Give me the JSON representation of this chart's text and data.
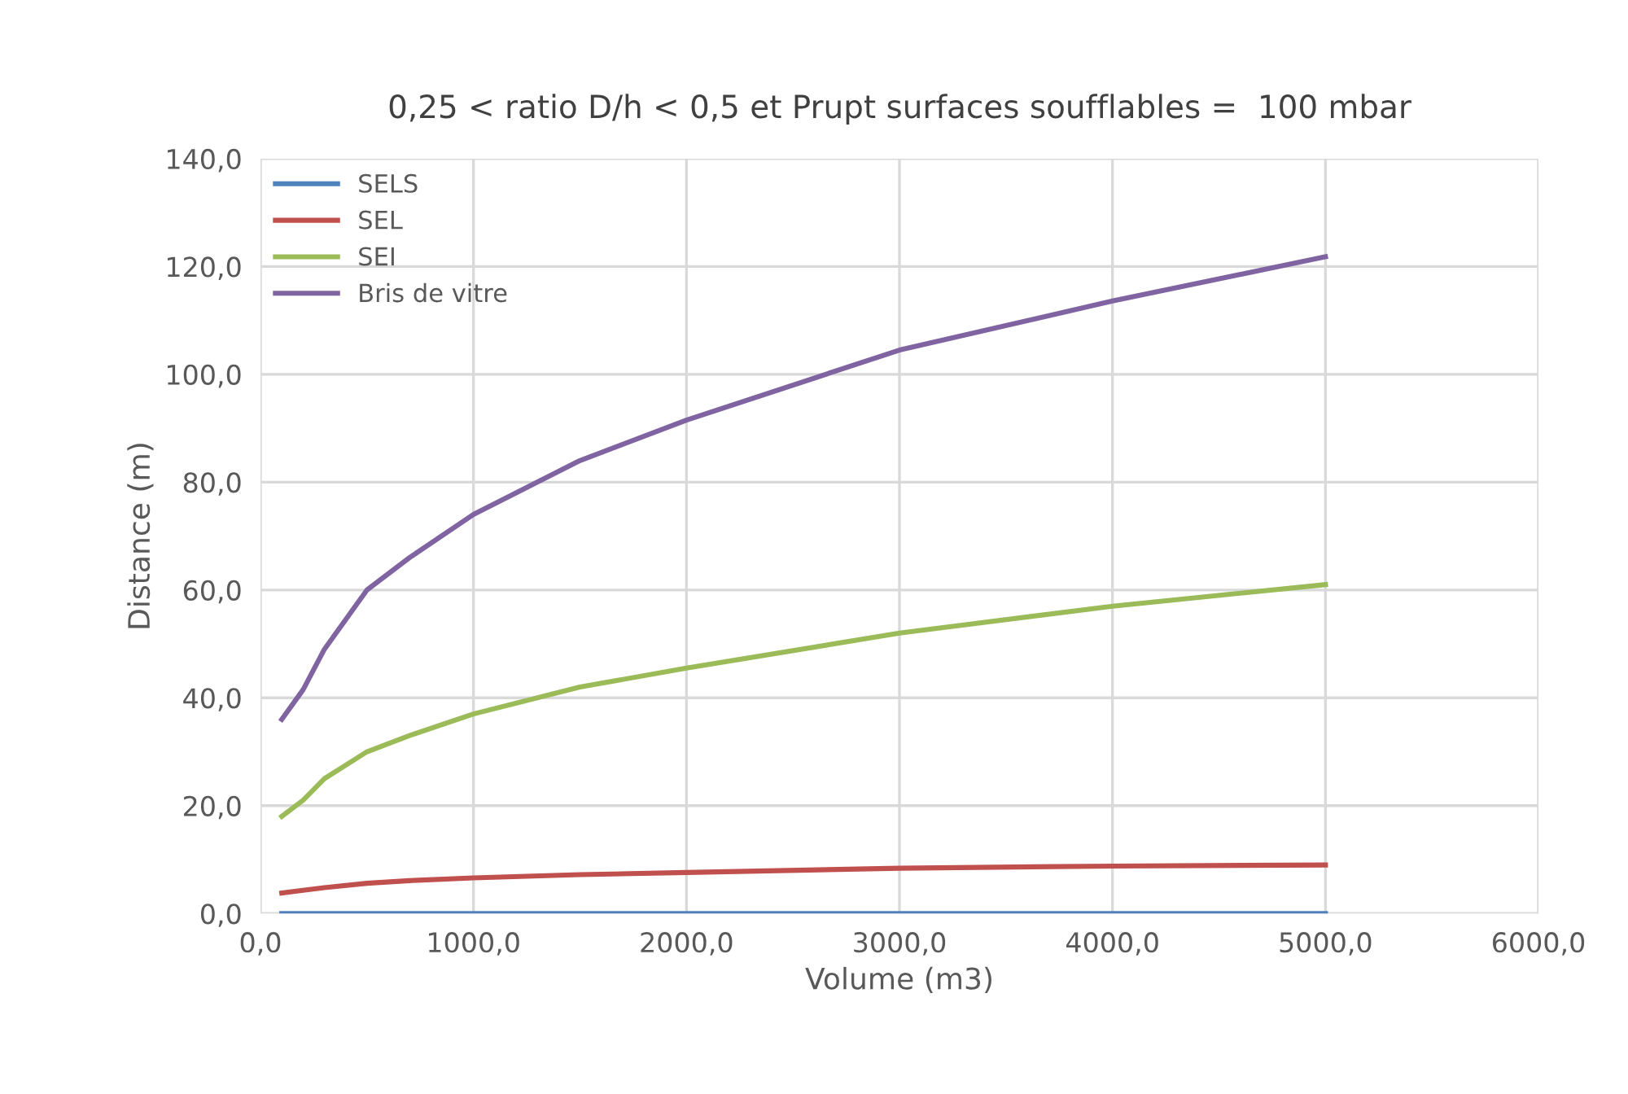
{
  "chart_data": {
    "type": "line",
    "title": "0,25 < ratio D/h < 0,5 et Prupt surfaces soufflables =  100 mbar",
    "xlabel": "Volume (m3)",
    "ylabel": "Distance (m)",
    "x": [
      100,
      200,
      300,
      500,
      700,
      1000,
      1500,
      2000,
      3000,
      4000,
      5000
    ],
    "series": [
      {
        "name": "SELS",
        "color": "#4f81bd",
        "values": [
          0,
          0,
          0,
          0,
          0,
          0,
          0,
          0,
          0,
          0,
          0
        ]
      },
      {
        "name": "SEL",
        "color": "#c0504d",
        "values": [
          3.8,
          4.3,
          4.8,
          5.6,
          6.1,
          6.6,
          7.2,
          7.6,
          8.4,
          8.8,
          9.0
        ]
      },
      {
        "name": "SEI",
        "color": "#9bbb59",
        "values": [
          18,
          21,
          25,
          30,
          33,
          37,
          42,
          45.5,
          52,
          57,
          61
        ]
      },
      {
        "name": "Bris de vitre",
        "color": "#8064a2",
        "values": [
          36,
          41.5,
          49,
          60,
          66,
          74,
          84,
          91.5,
          104.5,
          113.6,
          121.8
        ]
      }
    ],
    "xlim": [
      0,
      6000
    ],
    "xticks": [
      {
        "value": 0,
        "label": "0,0"
      },
      {
        "value": 1000,
        "label": "1000,0"
      },
      {
        "value": 2000,
        "label": "2000,0"
      },
      {
        "value": 3000,
        "label": "3000,0"
      },
      {
        "value": 4000,
        "label": "4000,0"
      },
      {
        "value": 5000,
        "label": "5000,0"
      },
      {
        "value": 6000,
        "label": "6000,0"
      }
    ],
    "ylim": [
      0,
      140
    ],
    "yticks": [
      {
        "value": 0,
        "label": "0,0"
      },
      {
        "value": 20,
        "label": "20,0"
      },
      {
        "value": 40,
        "label": "40,0"
      },
      {
        "value": 60,
        "label": "60,0"
      },
      {
        "value": 80,
        "label": "80,0"
      },
      {
        "value": 100,
        "label": "100,0"
      },
      {
        "value": 120,
        "label": "120,0"
      },
      {
        "value": 140,
        "label": "140,0"
      }
    ],
    "grid": true,
    "legend": "top left",
    "marker": "none",
    "line_style": "solid"
  }
}
